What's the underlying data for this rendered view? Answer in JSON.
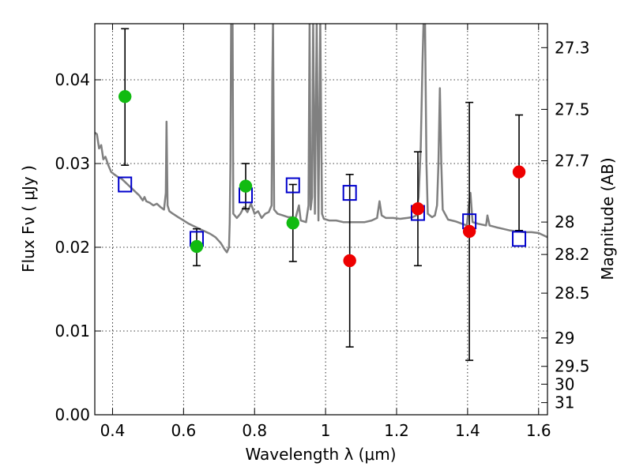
{
  "chart_data": {
    "type": "scatter",
    "title": "",
    "xlabel": "Wavelength  λ (μm)",
    "ylabel": "Flux  Fν  ( μJy )",
    "ylabel_right": "Magnitude (AB)",
    "xlim": [
      0.35,
      1.625
    ],
    "ylim": [
      0.0,
      0.0467
    ],
    "grid": true,
    "legend": "none",
    "x_ticks": [
      0.4,
      0.6,
      0.8,
      1.0,
      1.2,
      1.4,
      1.6
    ],
    "x_tick_labels": [
      "0.4",
      "0.6",
      "0.8",
      "1",
      "1.2",
      "1.4",
      "1.6"
    ],
    "y_ticks": [
      0.0,
      0.01,
      0.02,
      0.03,
      0.04
    ],
    "y_tick_labels": [
      "0.00",
      "0.01",
      "0.02",
      "0.03",
      "0.04"
    ],
    "right_ticks": [
      {
        "label": "27.3",
        "flux": 0.04384
      },
      {
        "label": "27.5",
        "flux": 0.03647
      },
      {
        "label": "27.7",
        "flux": 0.03033
      },
      {
        "label": "28",
        "flux": 0.02301
      },
      {
        "label": "28.2",
        "flux": 0.01914
      },
      {
        "label": "28.5",
        "flux": 0.01452
      },
      {
        "label": "29",
        "flux": 0.00917
      },
      {
        "label": "29.5",
        "flux": 0.00578
      },
      {
        "label": "30",
        "flux": 0.00365
      },
      {
        "label": "31",
        "flux": 0.00145
      }
    ],
    "colors": {
      "sed": "#808080",
      "model": "#0000cc",
      "green": "#11bb11",
      "red": "#ee0000",
      "errorbar": "#000000"
    },
    "sed_model": [
      [
        0.35,
        0.0337
      ],
      [
        0.356,
        0.0335
      ],
      [
        0.362,
        0.0318
      ],
      [
        0.368,
        0.0322
      ],
      [
        0.374,
        0.0305
      ],
      [
        0.38,
        0.0308
      ],
      [
        0.388,
        0.0298
      ],
      [
        0.396,
        0.029
      ],
      [
        0.405,
        0.0287
      ],
      [
        0.415,
        0.0284
      ],
      [
        0.425,
        0.0282
      ],
      [
        0.435,
        0.0278
      ],
      [
        0.445,
        0.0274
      ],
      [
        0.455,
        0.027
      ],
      [
        0.465,
        0.0266
      ],
      [
        0.475,
        0.0262
      ],
      [
        0.485,
        0.0256
      ],
      [
        0.49,
        0.026
      ],
      [
        0.495,
        0.0255
      ],
      [
        0.505,
        0.0253
      ],
      [
        0.515,
        0.025
      ],
      [
        0.525,
        0.0252
      ],
      [
        0.535,
        0.0248
      ],
      [
        0.545,
        0.0245
      ],
      [
        0.55,
        0.0265
      ],
      [
        0.552,
        0.035
      ],
      [
        0.555,
        0.025
      ],
      [
        0.56,
        0.0243
      ],
      [
        0.57,
        0.024
      ],
      [
        0.585,
        0.0236
      ],
      [
        0.6,
        0.0232
      ],
      [
        0.615,
        0.0228
      ],
      [
        0.63,
        0.0225
      ],
      [
        0.645,
        0.0222
      ],
      [
        0.66,
        0.0219
      ],
      [
        0.675,
        0.0216
      ],
      [
        0.69,
        0.0212
      ],
      [
        0.705,
        0.0205
      ],
      [
        0.715,
        0.0198
      ],
      [
        0.722,
        0.0194
      ],
      [
        0.728,
        0.02
      ],
      [
        0.73,
        0.023
      ],
      [
        0.732,
        0.03
      ],
      [
        0.734,
        0.047
      ],
      [
        0.738,
        0.047
      ],
      [
        0.74,
        0.024
      ],
      [
        0.75,
        0.0235
      ],
      [
        0.76,
        0.024
      ],
      [
        0.77,
        0.0248
      ],
      [
        0.78,
        0.0242
      ],
      [
        0.79,
        0.0252
      ],
      [
        0.8,
        0.024
      ],
      [
        0.81,
        0.0243
      ],
      [
        0.82,
        0.0235
      ],
      [
        0.83,
        0.024
      ],
      [
        0.84,
        0.0242
      ],
      [
        0.848,
        0.025
      ],
      [
        0.85,
        0.04
      ],
      [
        0.852,
        0.047
      ],
      [
        0.855,
        0.0245
      ],
      [
        0.865,
        0.024
      ],
      [
        0.88,
        0.0238
      ],
      [
        0.895,
        0.0236
      ],
      [
        0.905,
        0.0236
      ],
      [
        0.915,
        0.0234
      ],
      [
        0.925,
        0.025
      ],
      [
        0.93,
        0.0232
      ],
      [
        0.945,
        0.023
      ],
      [
        0.952,
        0.025
      ],
      [
        0.955,
        0.047
      ],
      [
        0.958,
        0.0245
      ],
      [
        0.962,
        0.026
      ],
      [
        0.965,
        0.047
      ],
      [
        0.97,
        0.024
      ],
      [
        0.975,
        0.047
      ],
      [
        0.98,
        0.0232
      ],
      [
        0.985,
        0.047
      ],
      [
        0.99,
        0.024
      ],
      [
        0.995,
        0.0234
      ],
      [
        1.01,
        0.0232
      ],
      [
        1.03,
        0.0232
      ],
      [
        1.05,
        0.023
      ],
      [
        1.07,
        0.023
      ],
      [
        1.09,
        0.023
      ],
      [
        1.11,
        0.023
      ],
      [
        1.13,
        0.0232
      ],
      [
        1.145,
        0.0235
      ],
      [
        1.152,
        0.0255
      ],
      [
        1.158,
        0.0238
      ],
      [
        1.17,
        0.0235
      ],
      [
        1.19,
        0.0235
      ],
      [
        1.21,
        0.0234
      ],
      [
        1.23,
        0.0235
      ],
      [
        1.245,
        0.0236
      ],
      [
        1.255,
        0.0238
      ],
      [
        1.262,
        0.026
      ],
      [
        1.268,
        0.032
      ],
      [
        1.273,
        0.042
      ],
      [
        1.276,
        0.047
      ],
      [
        1.28,
        0.047
      ],
      [
        1.284,
        0.03
      ],
      [
        1.288,
        0.024
      ],
      [
        1.3,
        0.0236
      ],
      [
        1.308,
        0.0238
      ],
      [
        1.314,
        0.025
      ],
      [
        1.318,
        0.03
      ],
      [
        1.322,
        0.039
      ],
      [
        1.326,
        0.03
      ],
      [
        1.33,
        0.0245
      ],
      [
        1.345,
        0.0233
      ],
      [
        1.365,
        0.0231
      ],
      [
        1.385,
        0.0228
      ],
      [
        1.398,
        0.0226
      ],
      [
        1.403,
        0.0248
      ],
      [
        1.408,
        0.0265
      ],
      [
        1.414,
        0.023
      ],
      [
        1.43,
        0.0228
      ],
      [
        1.452,
        0.0226
      ],
      [
        1.456,
        0.0238
      ],
      [
        1.462,
        0.0226
      ],
      [
        1.48,
        0.0224
      ],
      [
        1.5,
        0.0222
      ],
      [
        1.52,
        0.022
      ],
      [
        1.54,
        0.0219
      ],
      [
        1.56,
        0.0218
      ],
      [
        1.58,
        0.0218
      ],
      [
        1.6,
        0.0217
      ],
      [
        1.625,
        0.0212
      ]
    ],
    "model_points": [
      {
        "x": 0.435,
        "y": 0.0275
      },
      {
        "x": 0.637,
        "y": 0.021
      },
      {
        "x": 0.775,
        "y": 0.0262
      },
      {
        "x": 0.908,
        "y": 0.0274
      },
      {
        "x": 1.068,
        "y": 0.0265
      },
      {
        "x": 1.26,
        "y": 0.0241
      },
      {
        "x": 1.405,
        "y": 0.0231
      },
      {
        "x": 1.545,
        "y": 0.021
      }
    ],
    "observed_points": [
      {
        "x": 0.435,
        "y": 0.038,
        "err_low": 0.0298,
        "err_high": 0.0461,
        "color": "green"
      },
      {
        "x": 0.637,
        "y": 0.0201,
        "err_low": 0.0178,
        "err_high": 0.0222,
        "color": "green"
      },
      {
        "x": 0.775,
        "y": 0.0273,
        "err_low": 0.0246,
        "err_high": 0.03,
        "color": "green"
      },
      {
        "x": 0.908,
        "y": 0.0229,
        "err_low": 0.0183,
        "err_high": 0.0275,
        "color": "green"
      },
      {
        "x": 1.068,
        "y": 0.0184,
        "err_low": 0.0081,
        "err_high": 0.0287,
        "color": "red"
      },
      {
        "x": 1.26,
        "y": 0.0246,
        "err_low": 0.0178,
        "err_high": 0.0314,
        "color": "red"
      },
      {
        "x": 1.405,
        "y": 0.0219,
        "err_low": 0.0065,
        "err_high": 0.0373,
        "color": "red"
      },
      {
        "x": 1.545,
        "y": 0.029,
        "err_low": 0.022,
        "err_high": 0.0358,
        "color": "red"
      }
    ]
  }
}
